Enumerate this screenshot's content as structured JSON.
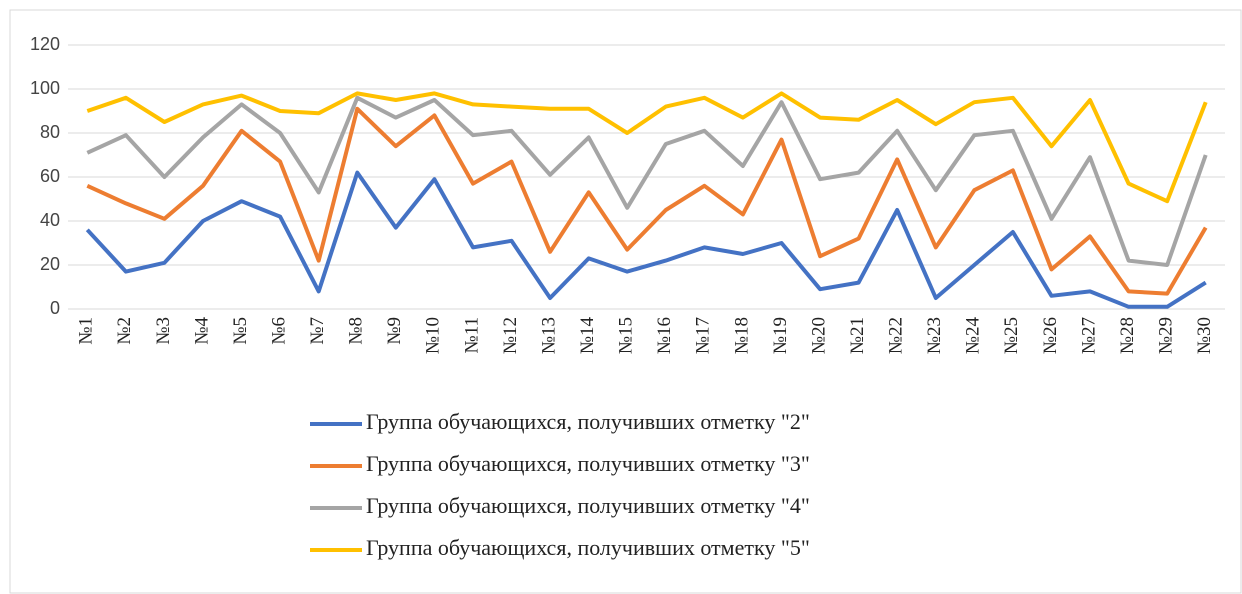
{
  "chart_data": {
    "type": "line",
    "categories": [
      "№1",
      "№2",
      "№3",
      "№4",
      "№5",
      "№6",
      "№7",
      "№8",
      "№9",
      "№10",
      "№11",
      "№12",
      "№13",
      "№14",
      "№15",
      "№16",
      "№17",
      "№18",
      "№19",
      "№20",
      "№21",
      "№22",
      "№23",
      "№24",
      "№25",
      "№26",
      "№27",
      "№28",
      "№29",
      "№30"
    ],
    "series": [
      {
        "name": "Группа обучающихся, получивших отметку \"2\"",
        "color": "#4472c4",
        "values": [
          36,
          17,
          21,
          40,
          49,
          42,
          8,
          62,
          37,
          59,
          28,
          31,
          5,
          23,
          17,
          22,
          28,
          25,
          30,
          9,
          12,
          45,
          5,
          20,
          35,
          6,
          8,
          1,
          1,
          12
        ]
      },
      {
        "name": "Группа обучающихся, получивших отметку \"3\"",
        "color": "#ed7d31",
        "values": [
          56,
          48,
          41,
          56,
          81,
          67,
          22,
          91,
          74,
          88,
          57,
          67,
          26,
          53,
          27,
          45,
          56,
          43,
          77,
          24,
          32,
          68,
          28,
          54,
          63,
          18,
          33,
          8,
          7,
          37
        ]
      },
      {
        "name": "Группа обучающихся, получивших отметку \"4\"",
        "color": "#a5a5a5",
        "values": [
          71,
          79,
          60,
          78,
          93,
          80,
          53,
          96,
          87,
          95,
          79,
          81,
          61,
          78,
          46,
          75,
          81,
          65,
          94,
          59,
          62,
          81,
          54,
          79,
          81,
          41,
          69,
          22,
          20,
          70
        ]
      },
      {
        "name": "Группа обучающихся, получивших отметку \"5\"",
        "color": "#ffc000",
        "values": [
          90,
          96,
          85,
          93,
          97,
          90,
          89,
          98,
          95,
          98,
          93,
          92,
          91,
          91,
          80,
          92,
          96,
          87,
          98,
          87,
          86,
          95,
          84,
          94,
          96,
          74,
          95,
          57,
          49,
          94
        ]
      }
    ],
    "ylim": [
      0,
      120
    ],
    "yticks": [
      0,
      20,
      40,
      60,
      80,
      100,
      120
    ],
    "grid": true,
    "legend": "bottom"
  }
}
